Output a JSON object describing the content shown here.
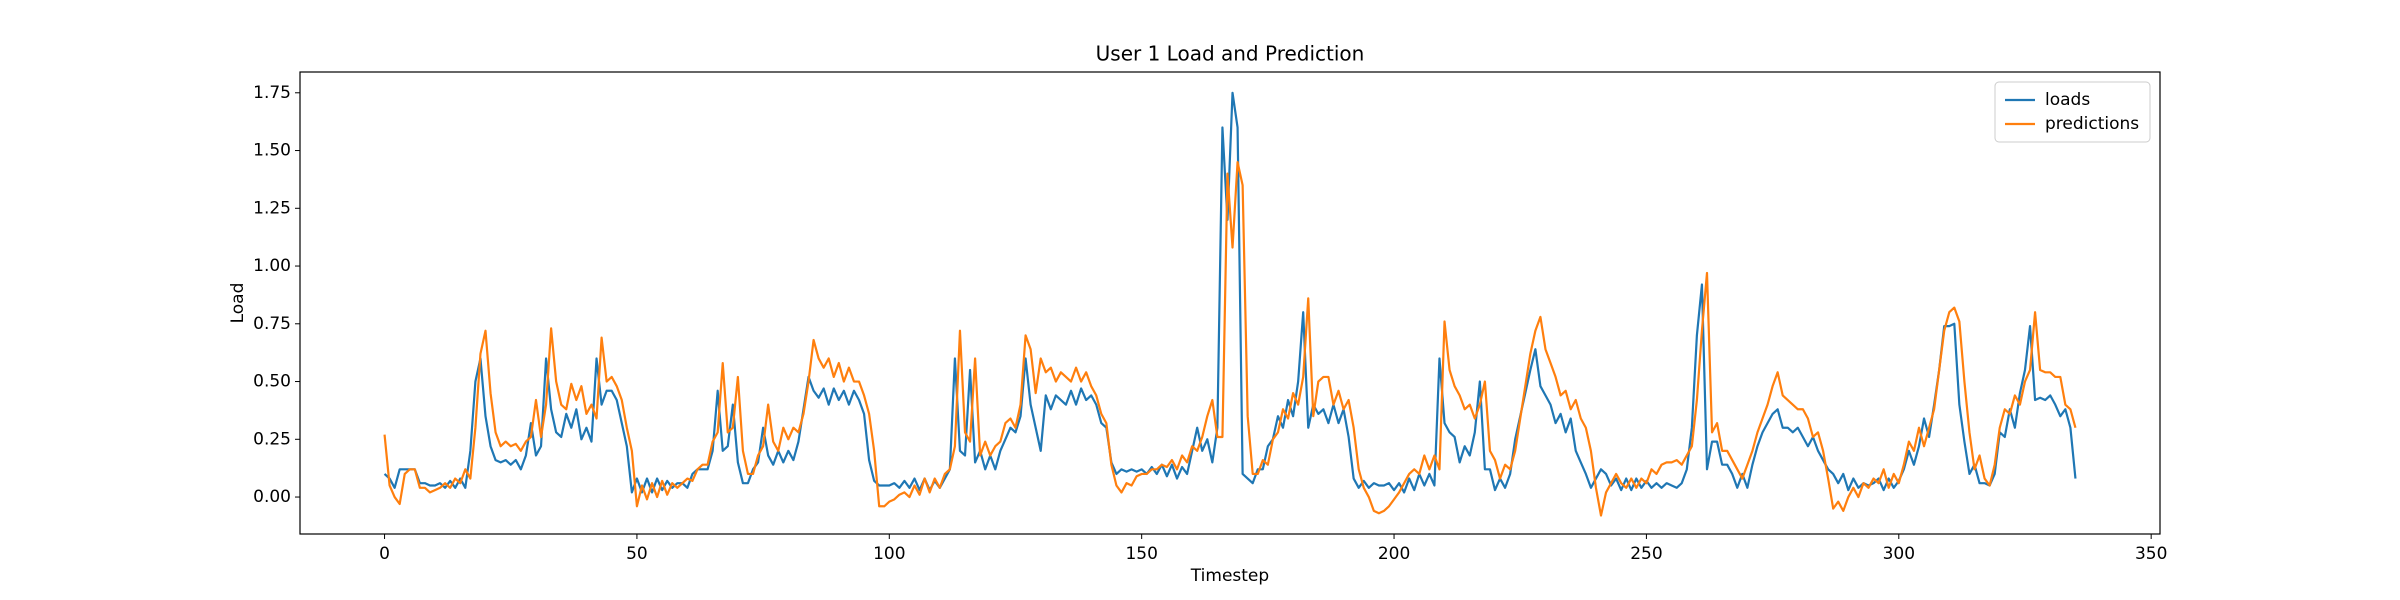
{
  "chart_data": {
    "type": "line",
    "title": "User 1 Load and Prediction",
    "x_label": "Timestep",
    "y_label": "Load",
    "x": [
      0,
      1,
      2,
      3,
      4,
      5,
      6,
      7,
      8,
      9,
      10,
      11,
      12,
      13,
      14,
      15,
      16,
      17,
      18,
      19,
      20,
      21,
      22,
      23,
      24,
      25,
      26,
      27,
      28,
      29,
      30,
      31,
      32,
      33,
      34,
      35,
      36,
      37,
      38,
      39,
      40,
      41,
      42,
      43,
      44,
      45,
      46,
      47,
      48,
      49,
      50,
      51,
      52,
      53,
      54,
      55,
      56,
      57,
      58,
      59,
      60,
      61,
      62,
      63,
      64,
      65,
      66,
      67,
      68,
      69,
      70,
      71,
      72,
      73,
      74,
      75,
      76,
      77,
      78,
      79,
      80,
      81,
      82,
      83,
      84,
      85,
      86,
      87,
      88,
      89,
      90,
      91,
      92,
      93,
      94,
      95,
      96,
      97,
      98,
      99,
      100,
      101,
      102,
      103,
      104,
      105,
      106,
      107,
      108,
      109,
      110,
      111,
      112,
      113,
      114,
      115,
      116,
      117,
      118,
      119,
      120,
      121,
      122,
      123,
      124,
      125,
      126,
      127,
      128,
      129,
      130,
      131,
      132,
      133,
      134,
      135,
      136,
      137,
      138,
      139,
      140,
      141,
      142,
      143,
      144,
      145,
      146,
      147,
      148,
      149,
      150,
      151,
      152,
      153,
      154,
      155,
      156,
      157,
      158,
      159,
      160,
      161,
      162,
      163,
      164,
      165,
      166,
      167,
      168,
      169,
      170,
      171,
      172,
      173,
      174,
      175,
      176,
      177,
      178,
      179,
      180,
      181,
      182,
      183,
      184,
      185,
      186,
      187,
      188,
      189,
      190,
      191,
      192,
      193,
      194,
      195,
      196,
      197,
      198,
      199,
      200,
      201,
      202,
      203,
      204,
      205,
      206,
      207,
      208,
      209,
      210,
      211,
      212,
      213,
      214,
      215,
      216,
      217,
      218,
      219,
      220,
      221,
      222,
      223,
      224,
      225,
      226,
      227,
      228,
      229,
      230,
      231,
      232,
      233,
      234,
      235,
      236,
      237,
      238,
      239,
      240,
      241,
      242,
      243,
      244,
      245,
      246,
      247,
      248,
      249,
      250,
      251,
      252,
      253,
      254,
      255,
      256,
      257,
      258,
      259,
      260,
      261,
      262,
      263,
      264,
      265,
      266,
      267,
      268,
      269,
      270,
      271,
      272,
      273,
      274,
      275,
      276,
      277,
      278,
      279,
      280,
      281,
      282,
      283,
      284,
      285,
      286,
      287,
      288,
      289,
      290,
      291,
      292,
      293,
      294,
      295,
      296,
      297,
      298,
      299,
      300,
      301,
      302,
      303,
      304,
      305,
      306,
      307,
      308,
      309,
      310,
      311,
      312,
      313,
      314,
      315,
      316,
      317,
      318,
      319,
      320,
      321,
      322,
      323,
      324,
      325,
      326,
      327,
      328,
      329,
      330,
      331,
      332,
      333,
      334,
      335
    ],
    "series": [
      {
        "name": "loads",
        "color": "#1f77b4",
        "values": [
          0.1,
          0.08,
          0.04,
          0.12,
          0.12,
          0.12,
          0.12,
          0.06,
          0.06,
          0.05,
          0.05,
          0.06,
          0.04,
          0.07,
          0.04,
          0.08,
          0.04,
          0.2,
          0.5,
          0.6,
          0.35,
          0.22,
          0.16,
          0.15,
          0.16,
          0.14,
          0.16,
          0.12,
          0.18,
          0.32,
          0.18,
          0.22,
          0.6,
          0.38,
          0.28,
          0.26,
          0.36,
          0.3,
          0.38,
          0.25,
          0.3,
          0.24,
          0.6,
          0.4,
          0.46,
          0.46,
          0.42,
          0.32,
          0.22,
          0.02,
          0.08,
          0.02,
          0.08,
          0.02,
          0.08,
          0.03,
          0.07,
          0.04,
          0.06,
          0.06,
          0.04,
          0.1,
          0.12,
          0.12,
          0.12,
          0.2,
          0.46,
          0.2,
          0.22,
          0.4,
          0.15,
          0.06,
          0.06,
          0.12,
          0.15,
          0.3,
          0.18,
          0.14,
          0.2,
          0.15,
          0.2,
          0.16,
          0.24,
          0.38,
          0.52,
          0.46,
          0.43,
          0.47,
          0.4,
          0.47,
          0.42,
          0.46,
          0.4,
          0.46,
          0.42,
          0.36,
          0.16,
          0.07,
          0.05,
          0.05,
          0.05,
          0.06,
          0.04,
          0.07,
          0.04,
          0.08,
          0.03,
          0.08,
          0.03,
          0.07,
          0.04,
          0.08,
          0.12,
          0.6,
          0.2,
          0.18,
          0.55,
          0.15,
          0.2,
          0.12,
          0.18,
          0.12,
          0.2,
          0.25,
          0.3,
          0.28,
          0.35,
          0.6,
          0.4,
          0.3,
          0.2,
          0.44,
          0.38,
          0.44,
          0.42,
          0.4,
          0.46,
          0.4,
          0.47,
          0.42,
          0.44,
          0.4,
          0.32,
          0.3,
          0.15,
          0.1,
          0.12,
          0.11,
          0.12,
          0.11,
          0.12,
          0.1,
          0.13,
          0.1,
          0.14,
          0.09,
          0.14,
          0.08,
          0.13,
          0.1,
          0.2,
          0.3,
          0.2,
          0.25,
          0.15,
          0.3,
          1.6,
          1.2,
          1.75,
          1.6,
          0.1,
          0.08,
          0.06,
          0.12,
          0.12,
          0.22,
          0.25,
          0.35,
          0.3,
          0.42,
          0.35,
          0.5,
          0.8,
          0.3,
          0.4,
          0.36,
          0.38,
          0.32,
          0.4,
          0.32,
          0.38,
          0.26,
          0.08,
          0.04,
          0.07,
          0.04,
          0.06,
          0.05,
          0.05,
          0.06,
          0.03,
          0.06,
          0.02,
          0.08,
          0.03,
          0.1,
          0.05,
          0.1,
          0.05,
          0.6,
          0.32,
          0.28,
          0.26,
          0.15,
          0.22,
          0.18,
          0.28,
          0.5,
          0.12,
          0.12,
          0.03,
          0.08,
          0.04,
          0.1,
          0.25,
          0.35,
          0.45,
          0.55,
          0.64,
          0.48,
          0.44,
          0.4,
          0.32,
          0.36,
          0.28,
          0.34,
          0.2,
          0.15,
          0.1,
          0.04,
          0.08,
          0.12,
          0.1,
          0.05,
          0.08,
          0.03,
          0.08,
          0.03,
          0.08,
          0.04,
          0.07,
          0.04,
          0.06,
          0.04,
          0.06,
          0.05,
          0.04,
          0.06,
          0.12,
          0.3,
          0.7,
          0.92,
          0.12,
          0.24,
          0.24,
          0.14,
          0.14,
          0.1,
          0.04,
          0.1,
          0.04,
          0.14,
          0.22,
          0.28,
          0.32,
          0.36,
          0.38,
          0.3,
          0.3,
          0.28,
          0.3,
          0.26,
          0.22,
          0.26,
          0.2,
          0.16,
          0.12,
          0.1,
          0.06,
          0.1,
          0.03,
          0.08,
          0.04,
          0.06,
          0.05,
          0.06,
          0.08,
          0.03,
          0.08,
          0.04,
          0.07,
          0.12,
          0.2,
          0.14,
          0.22,
          0.34,
          0.26,
          0.4,
          0.55,
          0.74,
          0.74,
          0.75,
          0.4,
          0.24,
          0.1,
          0.14,
          0.06,
          0.06,
          0.05,
          0.1,
          0.28,
          0.26,
          0.38,
          0.3,
          0.45,
          0.55,
          0.74,
          0.42,
          0.43,
          0.42,
          0.44,
          0.4,
          0.35,
          0.38,
          0.3,
          0.08
        ]
      },
      {
        "name": "predictions",
        "color": "#ff7f0e",
        "values": [
          0.27,
          0.05,
          0.0,
          -0.03,
          0.1,
          0.12,
          0.12,
          0.04,
          0.04,
          0.02,
          0.03,
          0.04,
          0.06,
          0.04,
          0.08,
          0.06,
          0.12,
          0.08,
          0.3,
          0.62,
          0.72,
          0.45,
          0.28,
          0.22,
          0.24,
          0.22,
          0.23,
          0.2,
          0.24,
          0.26,
          0.42,
          0.26,
          0.4,
          0.73,
          0.5,
          0.4,
          0.38,
          0.49,
          0.42,
          0.48,
          0.36,
          0.4,
          0.34,
          0.69,
          0.5,
          0.52,
          0.48,
          0.42,
          0.3,
          0.2,
          -0.04,
          0.05,
          -0.01,
          0.06,
          0.0,
          0.07,
          0.01,
          0.06,
          0.04,
          0.06,
          0.08,
          0.07,
          0.12,
          0.14,
          0.14,
          0.24,
          0.28,
          0.58,
          0.28,
          0.3,
          0.52,
          0.2,
          0.1,
          0.1,
          0.18,
          0.22,
          0.4,
          0.24,
          0.2,
          0.3,
          0.25,
          0.3,
          0.28,
          0.36,
          0.5,
          0.68,
          0.6,
          0.56,
          0.6,
          0.52,
          0.58,
          0.5,
          0.56,
          0.5,
          0.5,
          0.44,
          0.36,
          0.2,
          -0.04,
          -0.04,
          -0.02,
          -0.01,
          0.01,
          0.02,
          0.0,
          0.05,
          0.01,
          0.08,
          0.02,
          0.08,
          0.04,
          0.1,
          0.12,
          0.22,
          0.72,
          0.28,
          0.24,
          0.6,
          0.18,
          0.24,
          0.18,
          0.22,
          0.24,
          0.32,
          0.34,
          0.3,
          0.4,
          0.7,
          0.64,
          0.45,
          0.6,
          0.54,
          0.56,
          0.5,
          0.54,
          0.52,
          0.5,
          0.56,
          0.5,
          0.54,
          0.48,
          0.44,
          0.36,
          0.32,
          0.14,
          0.05,
          0.02,
          0.06,
          0.05,
          0.09,
          0.1,
          0.1,
          0.12,
          0.12,
          0.14,
          0.13,
          0.16,
          0.12,
          0.18,
          0.15,
          0.22,
          0.2,
          0.26,
          0.35,
          0.42,
          0.26,
          0.26,
          1.4,
          1.08,
          1.45,
          1.35,
          0.35,
          0.1,
          0.1,
          0.16,
          0.14,
          0.25,
          0.28,
          0.38,
          0.34,
          0.45,
          0.4,
          0.52,
          0.86,
          0.35,
          0.5,
          0.52,
          0.52,
          0.4,
          0.46,
          0.38,
          0.42,
          0.3,
          0.12,
          0.04,
          0.0,
          -0.06,
          -0.07,
          -0.06,
          -0.04,
          -0.01,
          0.02,
          0.06,
          0.1,
          0.12,
          0.1,
          0.18,
          0.12,
          0.18,
          0.12,
          0.76,
          0.55,
          0.48,
          0.44,
          0.38,
          0.4,
          0.34,
          0.4,
          0.5,
          0.2,
          0.16,
          0.08,
          0.14,
          0.12,
          0.2,
          0.34,
          0.48,
          0.62,
          0.72,
          0.78,
          0.64,
          0.58,
          0.52,
          0.44,
          0.46,
          0.38,
          0.42,
          0.34,
          0.3,
          0.2,
          0.04,
          -0.08,
          0.02,
          0.06,
          0.1,
          0.06,
          0.04,
          0.08,
          0.04,
          0.08,
          0.06,
          0.12,
          0.1,
          0.14,
          0.15,
          0.15,
          0.16,
          0.14,
          0.18,
          0.22,
          0.42,
          0.72,
          0.97,
          0.28,
          0.32,
          0.2,
          0.2,
          0.16,
          0.12,
          0.08,
          0.14,
          0.2,
          0.28,
          0.34,
          0.4,
          0.48,
          0.54,
          0.44,
          0.42,
          0.4,
          0.38,
          0.38,
          0.34,
          0.26,
          0.28,
          0.2,
          0.08,
          -0.05,
          -0.02,
          -0.06,
          0.0,
          0.04,
          0.0,
          0.06,
          0.04,
          0.08,
          0.06,
          0.12,
          0.04,
          0.1,
          0.06,
          0.14,
          0.24,
          0.2,
          0.3,
          0.22,
          0.3,
          0.38,
          0.55,
          0.72,
          0.8,
          0.82,
          0.76,
          0.5,
          0.28,
          0.12,
          0.18,
          0.08,
          0.05,
          0.14,
          0.3,
          0.38,
          0.36,
          0.44,
          0.4,
          0.5,
          0.55,
          0.8,
          0.55,
          0.54,
          0.54,
          0.52,
          0.52,
          0.4,
          0.38,
          0.3
        ]
      }
    ],
    "xlim": [
      -16.75,
      351.75
    ],
    "xticks": [
      0,
      50,
      100,
      150,
      200,
      250,
      300,
      350
    ],
    "ylim": [
      -0.16,
      1.84
    ],
    "yticks": [
      {
        "value": 0,
        "label": "0.00"
      },
      {
        "value": 0.25,
        "label": "0.25"
      },
      {
        "value": 0.5,
        "label": "0.50"
      },
      {
        "value": 0.75,
        "label": "0.75"
      },
      {
        "value": 1,
        "label": "1.00"
      },
      {
        "value": 1.25,
        "label": "1.25"
      },
      {
        "value": 1.5,
        "label": "1.50"
      },
      {
        "value": 1.75,
        "label": "1.75"
      }
    ],
    "legend": "upper right",
    "grid": false
  }
}
